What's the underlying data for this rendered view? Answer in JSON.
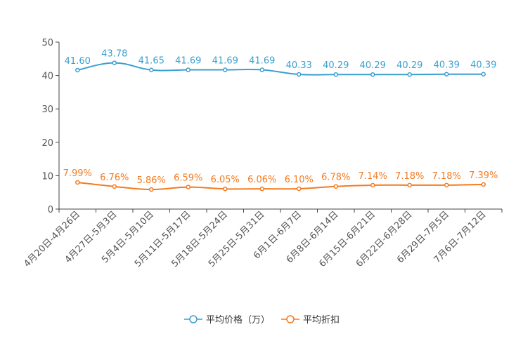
{
  "chart_data": {
    "type": "line",
    "categories": [
      "4月20日-4月26日",
      "4月27日-5月3日",
      "5月4日-5月10日",
      "5月11日-5月17日",
      "5月18日-5月24日",
      "5月25日-5月31日",
      "6月1日-6月7日",
      "6月8日-6月14日",
      "6月15日-6月21日",
      "6月22日-6月28日",
      "6月29日-7月5日",
      "7月6日-7月12日"
    ],
    "series": [
      {
        "name": "平均价格（万）",
        "color": "#3a9fd0",
        "values": [
          41.6,
          43.78,
          41.65,
          41.69,
          41.69,
          41.69,
          40.33,
          40.29,
          40.29,
          40.29,
          40.39,
          40.39
        ],
        "labels": [
          "41.60",
          "43.78",
          "41.65",
          "41.69",
          "41.69",
          "41.69",
          "40.33",
          "40.29",
          "40.29",
          "40.29",
          "40.39",
          "40.39"
        ]
      },
      {
        "name": "平均折扣",
        "color": "#f57a1f",
        "values": [
          7.99,
          6.76,
          5.86,
          6.59,
          6.05,
          6.06,
          6.1,
          6.78,
          7.14,
          7.18,
          7.18,
          7.39
        ],
        "labels": [
          "7.99%",
          "6.76%",
          "5.86%",
          "6.59%",
          "6.05%",
          "6.06%",
          "6.10%",
          "6.78%",
          "7.14%",
          "7.18%",
          "7.18%",
          "7.39%"
        ]
      }
    ],
    "yticks": [
      "0",
      "10",
      "20",
      "30",
      "40",
      "50"
    ],
    "ylim": [
      0,
      50
    ],
    "xlabel": "",
    "ylabel": "",
    "grid": false,
    "legend_position": "bottom-center"
  }
}
